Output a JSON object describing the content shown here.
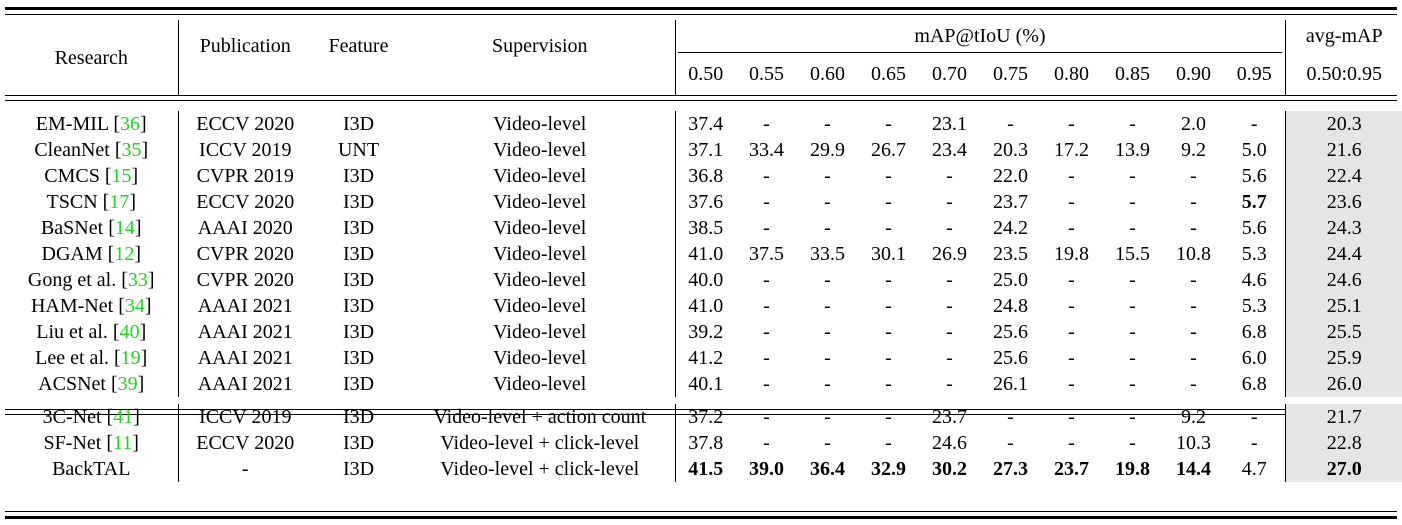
{
  "header": {
    "research": "Research",
    "publication": "Publication",
    "feature": "Feature",
    "supervision": "Supervision",
    "map_group": "mAP@tIoU (%)",
    "thresholds": [
      "0.50",
      "0.55",
      "0.60",
      "0.65",
      "0.70",
      "0.75",
      "0.80",
      "0.85",
      "0.90",
      "0.95"
    ],
    "avg": "avg-mAP",
    "avg_range": "0.50:0.95"
  },
  "groups": [
    {
      "rows": [
        {
          "method": "EM-MIL",
          "cite": "36",
          "pub": "ECCV 2020",
          "feature": "I3D",
          "sup": "Video-level",
          "values": [
            "37.4",
            "-",
            "-",
            "-",
            "23.1",
            "-",
            "-",
            "-",
            "2.0",
            "-"
          ],
          "avg": "20.3",
          "bold": []
        },
        {
          "method": "CleanNet",
          "cite": "35",
          "pub": "ICCV 2019",
          "feature": "UNT",
          "sup": "Video-level",
          "values": [
            "37.1",
            "33.4",
            "29.9",
            "26.7",
            "23.4",
            "20.3",
            "17.2",
            "13.9",
            "9.2",
            "5.0"
          ],
          "avg": "21.6",
          "bold": []
        },
        {
          "method": "CMCS",
          "cite": "15",
          "pub": "CVPR 2019",
          "feature": "I3D",
          "sup": "Video-level",
          "values": [
            "36.8",
            "-",
            "-",
            "-",
            "-",
            "22.0",
            "-",
            "-",
            "-",
            "5.6"
          ],
          "avg": "22.4",
          "bold": []
        },
        {
          "method": "TSCN",
          "cite": "17",
          "pub": "ECCV 2020",
          "feature": "I3D",
          "sup": "Video-level",
          "values": [
            "37.6",
            "-",
            "-",
            "-",
            "-",
            "23.7",
            "-",
            "-",
            "-",
            "5.7"
          ],
          "avg": "23.6",
          "bold": [
            9
          ]
        },
        {
          "method": "BaSNet",
          "cite": "14",
          "pub": "AAAI 2020",
          "feature": "I3D",
          "sup": "Video-level",
          "values": [
            "38.5",
            "-",
            "-",
            "-",
            "-",
            "24.2",
            "-",
            "-",
            "-",
            "5.6"
          ],
          "avg": "24.3",
          "bold": []
        },
        {
          "method": "DGAM",
          "cite": "12",
          "pub": "CVPR 2020",
          "feature": "I3D",
          "sup": "Video-level",
          "values": [
            "41.0",
            "37.5",
            "33.5",
            "30.1",
            "26.9",
            "23.5",
            "19.8",
            "15.5",
            "10.8",
            "5.3"
          ],
          "avg": "24.4",
          "bold": []
        },
        {
          "method": "Gong et al.",
          "cite": "33",
          "pub": "CVPR 2020",
          "feature": "I3D",
          "sup": "Video-level",
          "values": [
            "40.0",
            "-",
            "-",
            "-",
            "-",
            "25.0",
            "-",
            "-",
            "-",
            "4.6"
          ],
          "avg": "24.6",
          "bold": []
        },
        {
          "method": "HAM-Net",
          "cite": "34",
          "pub": "AAAI 2021",
          "feature": "I3D",
          "sup": "Video-level",
          "values": [
            "41.0",
            "-",
            "-",
            "-",
            "-",
            "24.8",
            "-",
            "-",
            "-",
            "5.3"
          ],
          "avg": "25.1",
          "bold": []
        },
        {
          "method": "Liu et al.",
          "cite": "40",
          "pub": "AAAI 2021",
          "feature": "I3D",
          "sup": "Video-level",
          "values": [
            "39.2",
            "-",
            "-",
            "-",
            "-",
            "25.6",
            "-",
            "-",
            "-",
            "6.8"
          ],
          "avg": "25.5",
          "bold": []
        },
        {
          "method": "Lee et al.",
          "cite": "19",
          "pub": "AAAI 2021",
          "feature": "I3D",
          "sup": "Video-level",
          "values": [
            "41.2",
            "-",
            "-",
            "-",
            "-",
            "25.6",
            "-",
            "-",
            "-",
            "6.0"
          ],
          "avg": "25.9",
          "bold": []
        },
        {
          "method": "ACSNet",
          "cite": "39",
          "pub": "AAAI 2021",
          "feature": "I3D",
          "sup": "Video-level",
          "values": [
            "40.1",
            "-",
            "-",
            "-",
            "-",
            "26.1",
            "-",
            "-",
            "-",
            "6.8"
          ],
          "avg": "26.0",
          "bold": []
        }
      ]
    },
    {
      "rows": [
        {
          "method": "3C-Net",
          "cite": "41",
          "pub": "ICCV 2019",
          "feature": "I3D",
          "sup": "Video-level + action count",
          "values": [
            "37.2",
            "-",
            "-",
            "-",
            "23.7",
            "-",
            "-",
            "-",
            "9.2",
            "-"
          ],
          "avg": "21.7",
          "bold": []
        },
        {
          "method": "SF-Net",
          "cite": "11",
          "pub": "ECCV 2020",
          "feature": "I3D",
          "sup": "Video-level + click-level",
          "values": [
            "37.8",
            "-",
            "-",
            "-",
            "24.6",
            "-",
            "-",
            "-",
            "10.3",
            "-"
          ],
          "avg": "22.8",
          "bold": []
        },
        {
          "method": "BackTAL",
          "cite": "",
          "pub": "-",
          "feature": "I3D",
          "sup": "Video-level + click-level",
          "values": [
            "41.5",
            "39.0",
            "36.4",
            "32.9",
            "30.2",
            "27.3",
            "23.7",
            "19.8",
            "14.4",
            "4.7"
          ],
          "avg": "27.0",
          "bold": [
            0,
            1,
            2,
            3,
            4,
            5,
            6,
            7,
            8,
            "avg"
          ]
        }
      ]
    }
  ],
  "colors": {
    "citation": "#1ed61e",
    "avg_shade": "#e5e5e5"
  }
}
